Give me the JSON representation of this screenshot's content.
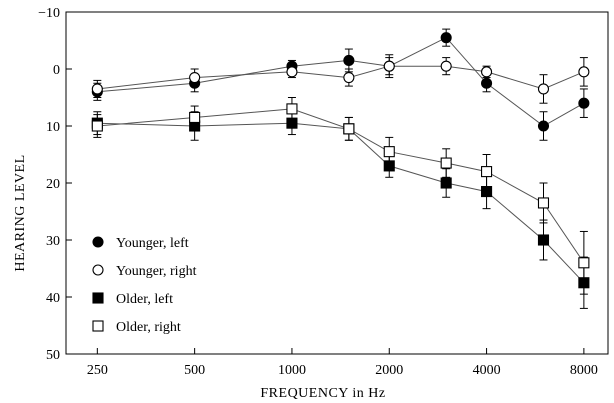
{
  "chart_data": {
    "type": "line",
    "title": "",
    "xlabel": "FREQUENCY  in  Hz",
    "ylabel": "HEARING  LEVEL",
    "x": [
      250,
      500,
      1000,
      1500,
      2000,
      3000,
      4000,
      6000,
      8000
    ],
    "x_scale": "log",
    "xticks": [
      250,
      500,
      1000,
      2000,
      4000,
      8000
    ],
    "xtick_labels": [
      "250",
      "500",
      "1000",
      "2000",
      "4000",
      "8000"
    ],
    "ylim": [
      -10,
      50
    ],
    "y_inverted": true,
    "yticks": [
      -10,
      0,
      10,
      20,
      30,
      40,
      50
    ],
    "ytick_labels": [
      "−10",
      "0",
      "10",
      "20",
      "30",
      "40",
      "50"
    ],
    "grid": false,
    "legend_position": "bottom-left",
    "series": [
      {
        "name": "Younger, left",
        "marker": "filled-circle",
        "values": [
          4,
          2.5,
          -0.5,
          -1.5,
          -0.5,
          -5.5,
          2.5,
          10,
          6
        ],
        "errors": [
          1.5,
          1.5,
          1,
          2,
          2,
          1.5,
          1.5,
          2.5,
          2.5
        ]
      },
      {
        "name": "Younger, right",
        "marker": "open-circle",
        "values": [
          3.5,
          1.5,
          0.5,
          1.5,
          -0.5,
          -0.5,
          0.5,
          3.5,
          0.5
        ],
        "errors": [
          1.5,
          1.5,
          1,
          1.5,
          1.5,
          1.5,
          1,
          2.5,
          2.5
        ]
      },
      {
        "name": "Older, left",
        "marker": "filled-square",
        "values": [
          9.5,
          10,
          9.5,
          10.5,
          17,
          20,
          21.5,
          30,
          37.5
        ],
        "errors": [
          2,
          2.5,
          2,
          2,
          2,
          2.5,
          3,
          3.5,
          4.5
        ]
      },
      {
        "name": "Older, right",
        "marker": "open-square",
        "values": [
          10,
          8.5,
          7,
          10.5,
          14.5,
          16.5,
          18,
          23.5,
          34
        ],
        "errors": [
          2,
          2,
          2,
          2,
          2.5,
          2.5,
          3,
          3.5,
          5.5
        ]
      }
    ]
  }
}
